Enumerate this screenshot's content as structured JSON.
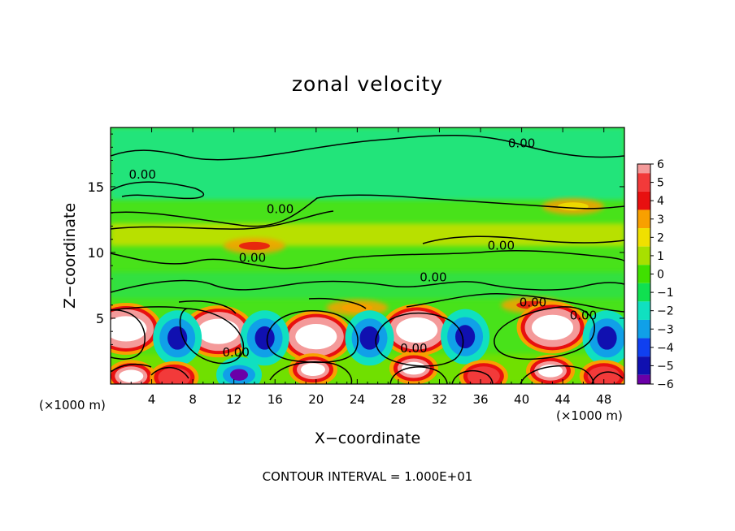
{
  "chart_data": {
    "type": "heatmap",
    "title": "zonal velocity",
    "xlabel": "X−coordinate",
    "ylabel": "Z−coordinate",
    "x_unit_left": "(×1000 m)",
    "x_unit_right": "(×1000 m)",
    "xlim": [
      0,
      50
    ],
    "ylim": [
      0,
      19.5
    ],
    "x_ticks": [
      4,
      8,
      12,
      16,
      20,
      24,
      28,
      32,
      36,
      40,
      44,
      48
    ],
    "x_tick_labels": [
      "4",
      "8",
      "12",
      "16",
      "20",
      "24",
      "28",
      "32",
      "36",
      "40",
      "44",
      "48"
    ],
    "y_ticks": [
      5,
      10,
      15
    ],
    "y_tick_labels": [
      "5",
      "10",
      "15"
    ],
    "colorbar": {
      "ticks": [
        6,
        5,
        4,
        3,
        2,
        1,
        0,
        -1,
        -2,
        -3,
        -4,
        -5,
        -6
      ],
      "tick_labels": [
        "6",
        "5",
        "4",
        "3",
        "2",
        "1",
        "0",
        "−1",
        "−2",
        "−3",
        "−4",
        "−5",
        "−6"
      ],
      "colors": [
        "#f49a9a",
        "#f23a3a",
        "#e81010",
        "#f8a000",
        "#f0e000",
        "#a8e000",
        "#40e000",
        "#10e050",
        "#10e0c0",
        "#10a0e8",
        "#1040f0",
        "#1010b0",
        "#6a00a8"
      ]
    },
    "contour_labels": [
      {
        "text": "0.00",
        "x": 3.1,
        "z": 15.6
      },
      {
        "text": "0.00",
        "x": 40.0,
        "z": 18.0
      },
      {
        "text": "0.00",
        "x": 16.5,
        "z": 13.0
      },
      {
        "text": "0.00",
        "x": 38.0,
        "z": 10.2
      },
      {
        "text": "0.00",
        "x": 13.8,
        "z": 9.3
      },
      {
        "text": "0.00",
        "x": 31.4,
        "z": 7.8
      },
      {
        "text": "0.00",
        "x": 41.1,
        "z": 5.9
      },
      {
        "text": "0.00",
        "x": 46.0,
        "z": 4.9
      },
      {
        "text": "0.00",
        "x": 12.2,
        "z": 2.1
      },
      {
        "text": "0.00",
        "x": 29.5,
        "z": 2.4
      }
    ],
    "features": [
      {
        "kind": "jet",
        "x": 14,
        "z": 10.5,
        "value": 4
      },
      {
        "kind": "jet",
        "x": 24,
        "z": 5.8,
        "value": 3
      },
      {
        "kind": "jet",
        "x": 41,
        "z": 6.0,
        "value": 4
      },
      {
        "kind": "jet",
        "x": 45,
        "z": 13.5,
        "value": 2
      },
      {
        "kind": "cell",
        "x": 1.5,
        "z": 4.2,
        "value": 6
      },
      {
        "kind": "cell",
        "x": 10.5,
        "z": 4.0,
        "value": 6
      },
      {
        "kind": "cell",
        "x": 20,
        "z": 3.6,
        "value": 6
      },
      {
        "kind": "cell",
        "x": 29.8,
        "z": 4.1,
        "value": 6
      },
      {
        "kind": "cell",
        "x": 43,
        "z": 4.3,
        "value": 6
      },
      {
        "kind": "cell",
        "x": 6.5,
        "z": 3.5,
        "value": -5
      },
      {
        "kind": "cell",
        "x": 15,
        "z": 3.5,
        "value": -5
      },
      {
        "kind": "cell",
        "x": 25.2,
        "z": 3.5,
        "value": -5
      },
      {
        "kind": "cell",
        "x": 34.5,
        "z": 3.6,
        "value": -5
      },
      {
        "kind": "cell",
        "x": 48.3,
        "z": 3.5,
        "value": -5
      },
      {
        "kind": "cell",
        "x": 2,
        "z": 0.6,
        "value": 6
      },
      {
        "kind": "cell",
        "x": 6.2,
        "z": 0.5,
        "value": 5
      },
      {
        "kind": "cell",
        "x": 12.5,
        "z": 0.7,
        "value": -6
      },
      {
        "kind": "cell",
        "x": 19.7,
        "z": 1.1,
        "value": 6
      },
      {
        "kind": "cell",
        "x": 29.5,
        "z": 1.2,
        "value": 6
      },
      {
        "kind": "cell",
        "x": 36.3,
        "z": 0.6,
        "value": 5
      },
      {
        "kind": "cell",
        "x": 42.8,
        "z": 1.0,
        "value": 6
      },
      {
        "kind": "cell",
        "x": 48.0,
        "z": 0.6,
        "value": 5
      }
    ],
    "grid": false
  },
  "footer": "CONTOUR INTERVAL = 1.000E+01"
}
